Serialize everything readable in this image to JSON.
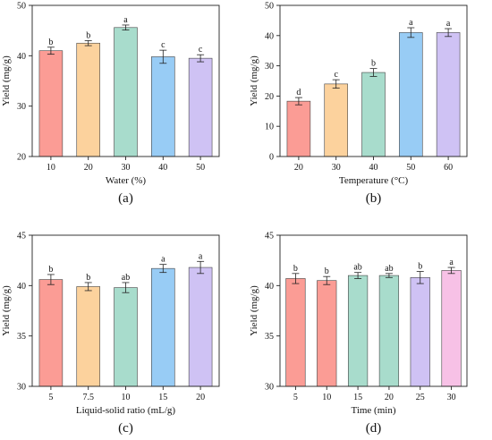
{
  "colors": {
    "red": "#fb9c95",
    "orange": "#fcd29d",
    "teal": "#a8dccc",
    "blue": "#98ccf5",
    "purple": "#cfc2f4",
    "pink": "#f7c1e6"
  },
  "chart_data": [
    {
      "type": "bar",
      "panel_label": "(a)",
      "xlabel": "Water (%)",
      "ylabel": "Yield (mg/g)",
      "ylim": [
        20,
        50
      ],
      "yticks": [
        20,
        30,
        40,
        50
      ],
      "categories": [
        "10",
        "20",
        "30",
        "40",
        "50"
      ],
      "values": [
        41.0,
        42.5,
        45.6,
        39.8,
        39.5
      ],
      "errors": [
        0.7,
        0.5,
        0.5,
        1.3,
        0.7
      ],
      "significance": [
        "b",
        "b",
        "a",
        "c",
        "c"
      ],
      "bar_colors": [
        "red",
        "orange",
        "teal",
        "blue",
        "purple"
      ]
    },
    {
      "type": "bar",
      "panel_label": "(b)",
      "xlabel": "Temperature (°C)",
      "ylabel": "Yield (mg/g)",
      "ylim": [
        0,
        50
      ],
      "yticks": [
        0,
        10,
        20,
        30,
        40,
        50
      ],
      "categories": [
        "20",
        "30",
        "40",
        "50",
        "60"
      ],
      "values": [
        18.3,
        24.0,
        27.8,
        41.0,
        41.0
      ],
      "errors": [
        1.2,
        1.4,
        1.3,
        1.6,
        1.3
      ],
      "significance": [
        "d",
        "c",
        "b",
        "a",
        "a"
      ],
      "bar_colors": [
        "red",
        "orange",
        "teal",
        "blue",
        "purple"
      ]
    },
    {
      "type": "bar",
      "panel_label": "(c)",
      "xlabel": "Liquid-solid ratio (mL/g)",
      "ylabel": "Yield (mg/g)",
      "ylim": [
        30,
        45
      ],
      "yticks": [
        30,
        35,
        40,
        45
      ],
      "categories": [
        "5",
        "7.5",
        "10",
        "15",
        "20"
      ],
      "values": [
        40.6,
        39.9,
        39.8,
        41.7,
        41.8
      ],
      "errors": [
        0.5,
        0.4,
        0.5,
        0.4,
        0.6
      ],
      "significance": [
        "b",
        "b",
        "ab",
        "a",
        "a"
      ],
      "bar_colors": [
        "red",
        "orange",
        "teal",
        "blue",
        "purple"
      ]
    },
    {
      "type": "bar",
      "panel_label": "(d)",
      "xlabel": "Time (min)",
      "ylabel": "Yield (mg/g)",
      "ylim": [
        30,
        45
      ],
      "yticks": [
        30,
        35,
        40,
        45
      ],
      "categories": [
        "5",
        "10",
        "15",
        "20",
        "25",
        "30"
      ],
      "values": [
        40.7,
        40.5,
        41.0,
        41.0,
        40.8,
        41.5
      ],
      "errors": [
        0.5,
        0.4,
        0.3,
        0.2,
        0.6,
        0.3
      ],
      "significance": [
        "b",
        "b",
        "ab",
        "ab",
        "b",
        "a"
      ],
      "bar_colors": [
        "red",
        "red",
        "teal",
        "teal",
        "purple",
        "pink"
      ]
    }
  ]
}
